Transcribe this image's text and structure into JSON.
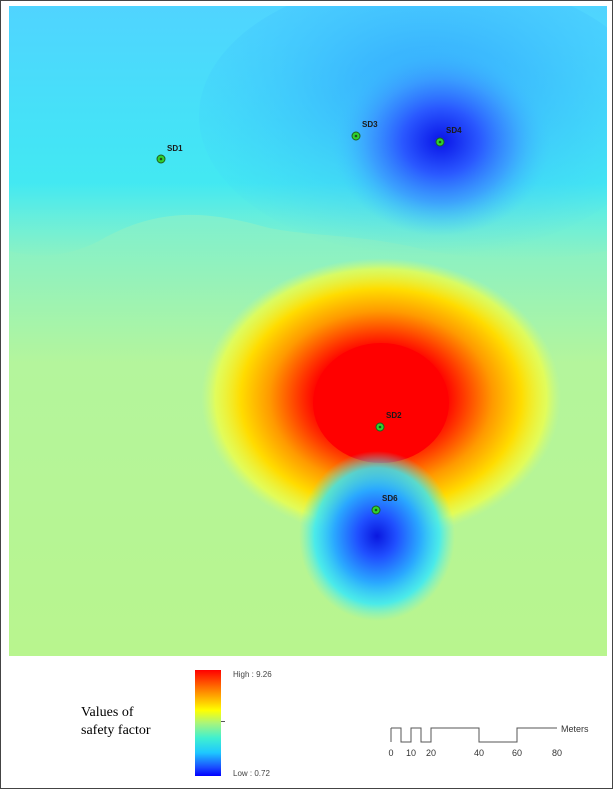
{
  "map": {
    "sites": [
      {
        "id": "SD1",
        "label": "SD1"
      },
      {
        "id": "SD3",
        "label": "SD3"
      },
      {
        "id": "SD4",
        "label": "SD4"
      },
      {
        "id": "SD2",
        "label": "SD2"
      },
      {
        "id": "SD6",
        "label": "SD6"
      }
    ],
    "colors": {
      "high": "#ff0000",
      "mid": "#ffff00",
      "low": "#0000ff",
      "site_marker": "#2fd12f"
    }
  },
  "legend": {
    "title_line1": "Values of",
    "title_line2": "safety factor",
    "high_label": "High : 9.26",
    "low_label": "Low : 0.72",
    "scale": {
      "ticks": [
        "0",
        "10",
        "20",
        "40",
        "60",
        "80"
      ],
      "unit": "Meters"
    }
  }
}
